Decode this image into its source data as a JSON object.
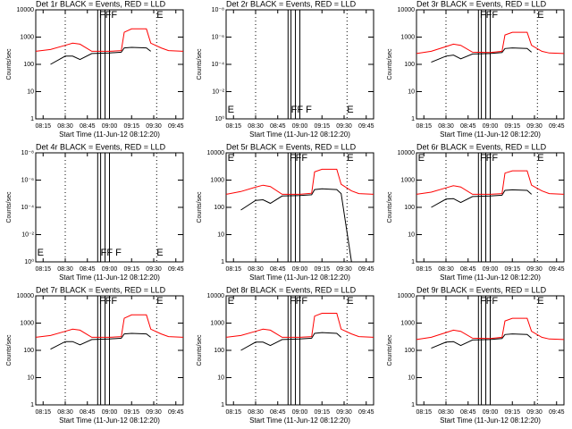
{
  "chart_data": [
    {
      "type": "line",
      "title": "Det 1r BLACK = Events, RED = LLD",
      "xlabel": "Start Time (11-Jun-12 08:12:20)",
      "ylabel": "Counts/sec",
      "log_y": true,
      "xlim": [
        "08:10",
        "09:50"
      ],
      "xticks": [
        "08:15",
        "08:30",
        "08:45",
        "09:00",
        "09:15",
        "09:30",
        "09:45"
      ],
      "ylim": [
        1,
        10000
      ],
      "yticks": [
        1,
        10,
        100,
        1000,
        10000
      ],
      "x": [
        "08:10",
        "08:20",
        "08:30",
        "08:35",
        "08:40",
        "08:48",
        "09:00",
        "09:08",
        "09:10",
        "09:15",
        "09:25",
        "09:28",
        "09:35",
        "09:40",
        "09:50"
      ],
      "series": [
        {
          "name": "Events",
          "color": "#000000",
          "values": [
            null,
            100,
            200,
            200,
            150,
            250,
            260,
            280,
            400,
            420,
            400,
            300,
            null,
            null,
            null
          ]
        },
        {
          "name": "LLD",
          "color": "#ff0000",
          "values": [
            300,
            350,
            500,
            600,
            550,
            300,
            300,
            320,
            1500,
            2000,
            2000,
            600,
            400,
            320,
            300
          ]
        }
      ],
      "vlines": [
        {
          "x": "08:30",
          "style": "dotted"
        },
        {
          "x": "08:52",
          "style": "solid"
        },
        {
          "x": "08:54",
          "style": "solid"
        },
        {
          "x": "08:57",
          "style": "solid"
        },
        {
          "x": "09:00",
          "style": "solid"
        },
        {
          "x": "09:32",
          "style": "dotted"
        }
      ],
      "annotations": [
        {
          "x": "08:53",
          "text": "FFF",
          "pos": "top"
        },
        {
          "x": "09:32",
          "text": "E",
          "pos": "top"
        }
      ]
    },
    {
      "type": "line",
      "title": "Det 2r BLACK = Events, RED = LLD",
      "xlabel": "Start Time (11-Jun-12 08:12:20)",
      "ylabel": "Counts/sec",
      "log_y": true,
      "xlim": [
        "08:10",
        "09:50"
      ],
      "xticks": [
        "08:15",
        "08:30",
        "08:45",
        "09:00",
        "09:15",
        "09:30",
        "09:45"
      ],
      "ylim": [
        1,
        1e-08
      ],
      "yticks": [
        {
          "value": 1,
          "label": "10⁰"
        },
        {
          "value": 0.01,
          "label": "10⁻²"
        },
        {
          "value": 0.0001,
          "label": "10⁻⁴"
        },
        {
          "value": 1e-06,
          "label": "10⁻⁶"
        },
        {
          "value": 1e-08,
          "label": "10⁻⁸"
        }
      ],
      "x": [],
      "series": [],
      "vlines": [
        {
          "x": "08:30",
          "style": "dotted"
        },
        {
          "x": "08:52",
          "style": "solid"
        },
        {
          "x": "08:54",
          "style": "solid"
        },
        {
          "x": "08:57",
          "style": "solid"
        },
        {
          "x": "09:00",
          "style": "solid"
        },
        {
          "x": "09:32",
          "style": "dotted"
        }
      ],
      "annotations": [
        {
          "x": "08:11",
          "text": "E",
          "pos": "bottom"
        },
        {
          "x": "08:54",
          "text": "FF F",
          "pos": "bottom"
        },
        {
          "x": "09:32",
          "text": "E",
          "pos": "bottom"
        }
      ]
    },
    {
      "type": "line",
      "title": "Det 3r BLACK = Events, RED = LLD",
      "xlabel": "Start Time (11-Jun-12 08:12:20)",
      "ylabel": "Counts/sec",
      "log_y": true,
      "xlim": [
        "08:10",
        "09:50"
      ],
      "xticks": [
        "08:15",
        "08:30",
        "08:45",
        "09:00",
        "09:15",
        "09:30",
        "09:45"
      ],
      "ylim": [
        1,
        10000
      ],
      "yticks": [
        1,
        10,
        100,
        1000,
        10000
      ],
      "x": [
        "08:10",
        "08:20",
        "08:30",
        "08:35",
        "08:40",
        "08:48",
        "09:00",
        "09:08",
        "09:10",
        "09:15",
        "09:25",
        "09:28",
        "09:35",
        "09:40",
        "09:50"
      ],
      "series": [
        {
          "name": "Events",
          "color": "#000000",
          "values": [
            null,
            120,
            200,
            220,
            160,
            240,
            250,
            270,
            380,
            400,
            380,
            280,
            null,
            null,
            null
          ]
        },
        {
          "name": "LLD",
          "color": "#ff0000",
          "values": [
            250,
            300,
            450,
            550,
            500,
            280,
            270,
            300,
            1200,
            1500,
            1500,
            500,
            300,
            260,
            250
          ]
        }
      ],
      "vlines": [
        {
          "x": "08:30",
          "style": "dotted"
        },
        {
          "x": "08:52",
          "style": "solid"
        },
        {
          "x": "08:54",
          "style": "solid"
        },
        {
          "x": "08:57",
          "style": "solid"
        },
        {
          "x": "09:00",
          "style": "solid"
        },
        {
          "x": "09:32",
          "style": "dotted"
        }
      ],
      "annotations": [
        {
          "x": "08:53",
          "text": "FFF",
          "pos": "top"
        },
        {
          "x": "09:32",
          "text": "E",
          "pos": "top"
        }
      ]
    },
    {
      "type": "line",
      "title": "Det 4r BLACK = Events, RED = LLD",
      "xlabel": "Start Time (11-Jun-12 08:12:20)",
      "ylabel": "Counts/sec",
      "log_y": true,
      "xlim": [
        "08:10",
        "09:50"
      ],
      "xticks": [
        "08:15",
        "08:30",
        "08:45",
        "09:00",
        "09:15",
        "09:30",
        "09:45"
      ],
      "ylim": [
        1,
        1e-08
      ],
      "yticks": [
        {
          "value": 1,
          "label": "10⁰"
        },
        {
          "value": 0.01,
          "label": "10⁻²"
        },
        {
          "value": 0.0001,
          "label": "10⁻⁴"
        },
        {
          "value": 1e-06,
          "label": "10⁻⁶"
        },
        {
          "value": 1e-08,
          "label": "10⁻⁸"
        }
      ],
      "x": [],
      "series": [],
      "vlines": [
        {
          "x": "08:30",
          "style": "dotted"
        },
        {
          "x": "08:52",
          "style": "solid"
        },
        {
          "x": "08:54",
          "style": "solid"
        },
        {
          "x": "08:57",
          "style": "solid"
        },
        {
          "x": "09:00",
          "style": "solid"
        },
        {
          "x": "09:32",
          "style": "dotted"
        }
      ],
      "annotations": [
        {
          "x": "08:11",
          "text": "E",
          "pos": "bottom"
        },
        {
          "x": "08:54",
          "text": "FF F",
          "pos": "bottom"
        },
        {
          "x": "09:32",
          "text": "E",
          "pos": "bottom"
        }
      ]
    },
    {
      "type": "line",
      "title": "Det 5r BLACK = Events, RED = LLD",
      "xlabel": "Start Time (11-Jun-12 08:12:20)",
      "ylabel": "Counts/sec",
      "log_y": true,
      "xlim": [
        "08:10",
        "09:50"
      ],
      "xticks": [
        "08:15",
        "08:30",
        "08:45",
        "09:00",
        "09:15",
        "09:30",
        "09:45"
      ],
      "ylim": [
        1,
        10000
      ],
      "yticks": [
        1,
        10,
        100,
        1000,
        10000
      ],
      "x": [
        "08:10",
        "08:20",
        "08:30",
        "08:35",
        "08:40",
        "08:48",
        "09:00",
        "09:08",
        "09:10",
        "09:15",
        "09:25",
        "09:28",
        "09:35",
        "09:40",
        "09:50"
      ],
      "series": [
        {
          "name": "Events",
          "color": "#000000",
          "values": [
            null,
            80,
            180,
            190,
            140,
            260,
            270,
            290,
            450,
            480,
            450,
            320,
            1,
            null,
            null
          ]
        },
        {
          "name": "LLD",
          "color": "#ff0000",
          "values": [
            300,
            380,
            550,
            650,
            580,
            300,
            300,
            330,
            2000,
            2500,
            2500,
            700,
            400,
            320,
            300
          ]
        }
      ],
      "vlines": [
        {
          "x": "08:30",
          "style": "dotted"
        },
        {
          "x": "08:52",
          "style": "solid"
        },
        {
          "x": "08:54",
          "style": "solid"
        },
        {
          "x": "08:57",
          "style": "solid"
        },
        {
          "x": "09:00",
          "style": "solid"
        },
        {
          "x": "09:32",
          "style": "dotted"
        }
      ],
      "annotations": [
        {
          "x": "08:11",
          "text": "E",
          "pos": "top"
        },
        {
          "x": "08:53",
          "text": "FFF",
          "pos": "top"
        },
        {
          "x": "09:32",
          "text": "E",
          "pos": "top"
        }
      ]
    },
    {
      "type": "line",
      "title": "Det 6r BLACK = Events, RED = LLD",
      "xlabel": "Start Time (11-Jun-12 08:12:20)",
      "ylabel": "Counts/sec",
      "log_y": true,
      "xlim": [
        "08:10",
        "09:50"
      ],
      "xticks": [
        "08:15",
        "08:30",
        "08:45",
        "09:00",
        "09:15",
        "09:30",
        "09:45"
      ],
      "ylim": [
        1,
        10000
      ],
      "yticks": [
        1,
        10,
        100,
        1000,
        10000
      ],
      "x": [
        "08:10",
        "08:20",
        "08:30",
        "08:35",
        "08:40",
        "08:48",
        "09:00",
        "09:08",
        "09:10",
        "09:15",
        "09:25",
        "09:28",
        "09:35",
        "09:40",
        "09:50"
      ],
      "series": [
        {
          "name": "Events",
          "color": "#000000",
          "values": [
            null,
            100,
            200,
            210,
            150,
            250,
            260,
            280,
            420,
            440,
            420,
            300,
            null,
            null,
            null
          ]
        },
        {
          "name": "LLD",
          "color": "#ff0000",
          "values": [
            300,
            360,
            520,
            620,
            560,
            300,
            300,
            320,
            1800,
            2200,
            2200,
            650,
            400,
            320,
            300
          ]
        }
      ],
      "vlines": [
        {
          "x": "08:30",
          "style": "dotted"
        },
        {
          "x": "08:52",
          "style": "solid"
        },
        {
          "x": "08:54",
          "style": "solid"
        },
        {
          "x": "08:57",
          "style": "solid"
        },
        {
          "x": "09:00",
          "style": "solid"
        },
        {
          "x": "09:32",
          "style": "dotted"
        }
      ],
      "annotations": [
        {
          "x": "08:11",
          "text": "E",
          "pos": "top"
        },
        {
          "x": "08:53",
          "text": "FFF",
          "pos": "top"
        },
        {
          "x": "09:32",
          "text": "E",
          "pos": "top"
        }
      ]
    },
    {
      "type": "line",
      "title": "Det 7r BLACK = Events, RED = LLD",
      "xlabel": "Start Time (11-Jun-12 08:12:20)",
      "ylabel": "Counts/sec",
      "log_y": true,
      "xlim": [
        "08:10",
        "09:50"
      ],
      "xticks": [
        "08:15",
        "08:30",
        "08:45",
        "09:00",
        "09:15",
        "09:30",
        "09:45"
      ],
      "ylim": [
        1,
        10000
      ],
      "yticks": [
        1,
        10,
        100,
        1000,
        10000
      ],
      "x": [
        "08:10",
        "08:20",
        "08:30",
        "08:35",
        "08:40",
        "08:48",
        "09:00",
        "09:08",
        "09:10",
        "09:15",
        "09:25",
        "09:28",
        "09:35",
        "09:40",
        "09:50"
      ],
      "series": [
        {
          "name": "Events",
          "color": "#000000",
          "values": [
            null,
            110,
            210,
            210,
            160,
            250,
            260,
            280,
            400,
            420,
            400,
            300,
            null,
            null,
            null
          ]
        },
        {
          "name": "LLD",
          "color": "#ff0000",
          "values": [
            300,
            350,
            500,
            600,
            550,
            300,
            300,
            320,
            1500,
            2000,
            2000,
            600,
            400,
            320,
            300
          ]
        }
      ],
      "vlines": [
        {
          "x": "08:30",
          "style": "dotted"
        },
        {
          "x": "08:52",
          "style": "solid"
        },
        {
          "x": "08:54",
          "style": "solid"
        },
        {
          "x": "08:57",
          "style": "solid"
        },
        {
          "x": "09:00",
          "style": "solid"
        },
        {
          "x": "09:32",
          "style": "dotted"
        }
      ],
      "annotations": [
        {
          "x": "08:53",
          "text": "FFF",
          "pos": "top"
        },
        {
          "x": "09:32",
          "text": "E",
          "pos": "top"
        }
      ]
    },
    {
      "type": "line",
      "title": "Det 8r BLACK = Events, RED = LLD",
      "xlabel": "Start Time (11-Jun-12 08:12:20)",
      "ylabel": "Counts/sec",
      "log_y": true,
      "xlim": [
        "08:10",
        "09:50"
      ],
      "xticks": [
        "08:15",
        "08:30",
        "08:45",
        "09:00",
        "09:15",
        "09:30",
        "09:45"
      ],
      "ylim": [
        1,
        10000
      ],
      "yticks": [
        1,
        10,
        100,
        1000,
        10000
      ],
      "x": [
        "08:10",
        "08:20",
        "08:30",
        "08:35",
        "08:40",
        "08:48",
        "09:00",
        "09:08",
        "09:10",
        "09:15",
        "09:25",
        "09:28",
        "09:35",
        "09:40",
        "09:50"
      ],
      "series": [
        {
          "name": "Events",
          "color": "#000000",
          "values": [
            null,
            100,
            200,
            200,
            150,
            250,
            260,
            280,
            420,
            450,
            420,
            300,
            null,
            null,
            null
          ]
        },
        {
          "name": "LLD",
          "color": "#ff0000",
          "values": [
            300,
            350,
            500,
            600,
            550,
            300,
            300,
            320,
            1800,
            2300,
            2300,
            600,
            400,
            320,
            300
          ]
        }
      ],
      "vlines": [
        {
          "x": "08:30",
          "style": "dotted"
        },
        {
          "x": "08:52",
          "style": "solid"
        },
        {
          "x": "08:54",
          "style": "solid"
        },
        {
          "x": "08:57",
          "style": "solid"
        },
        {
          "x": "09:00",
          "style": "solid"
        },
        {
          "x": "09:32",
          "style": "dotted"
        }
      ],
      "annotations": [
        {
          "x": "08:11",
          "text": "E",
          "pos": "top"
        },
        {
          "x": "08:53",
          "text": "FFF",
          "pos": "top"
        },
        {
          "x": "09:32",
          "text": "E",
          "pos": "top"
        }
      ]
    },
    {
      "type": "line",
      "title": "Det 9r BLACK = Events, RED = LLD",
      "xlabel": "Start Time (11-Jun-12 08:12:20)",
      "ylabel": "Counts/sec",
      "log_y": true,
      "xlim": [
        "08:10",
        "09:50"
      ],
      "xticks": [
        "08:15",
        "08:30",
        "08:45",
        "09:00",
        "09:15",
        "09:30",
        "09:45"
      ],
      "ylim": [
        1,
        10000
      ],
      "yticks": [
        1,
        10,
        100,
        1000,
        10000
      ],
      "x": [
        "08:10",
        "08:20",
        "08:30",
        "08:35",
        "08:40",
        "08:48",
        "09:00",
        "09:08",
        "09:10",
        "09:15",
        "09:25",
        "09:28",
        "09:35",
        "09:40",
        "09:50"
      ],
      "series": [
        {
          "name": "Events",
          "color": "#000000",
          "values": [
            null,
            120,
            200,
            210,
            150,
            240,
            250,
            270,
            380,
            400,
            380,
            280,
            null,
            null,
            null
          ]
        },
        {
          "name": "LLD",
          "color": "#ff0000",
          "values": [
            250,
            300,
            450,
            550,
            500,
            280,
            270,
            300,
            1200,
            1500,
            1500,
            500,
            300,
            260,
            250
          ]
        }
      ],
      "vlines": [
        {
          "x": "08:30",
          "style": "dotted"
        },
        {
          "x": "08:52",
          "style": "solid"
        },
        {
          "x": "08:54",
          "style": "solid"
        },
        {
          "x": "08:57",
          "style": "solid"
        },
        {
          "x": "09:00",
          "style": "solid"
        },
        {
          "x": "09:32",
          "style": "dotted"
        }
      ],
      "annotations": [
        {
          "x": "08:53",
          "text": "FFF",
          "pos": "top"
        },
        {
          "x": "09:32",
          "text": "E",
          "pos": "top"
        }
      ]
    }
  ]
}
